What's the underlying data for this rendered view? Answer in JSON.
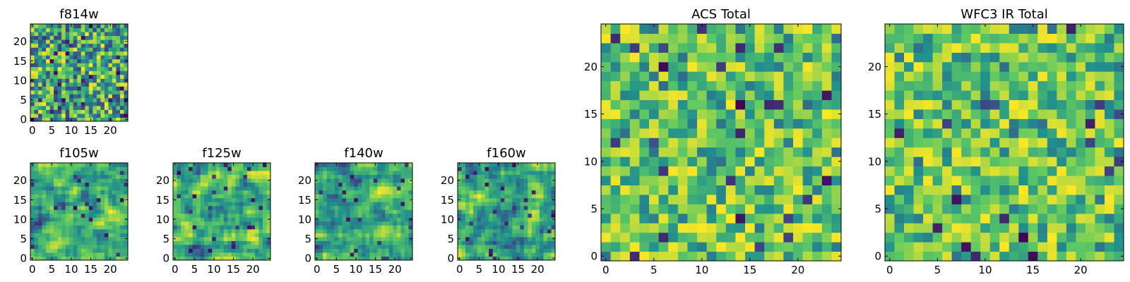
{
  "figure": {
    "description_colormap": "viridis",
    "colormap_stops": [
      "#440154",
      "#3b528b",
      "#21918c",
      "#5ec962",
      "#fde725"
    ]
  },
  "chart_data": [
    {
      "id": "f814w",
      "type": "heatmap",
      "title": "f814w",
      "grid_size": 25,
      "seed": 814,
      "mode": "noise",
      "xlim": [
        0,
        24
      ],
      "ylim": [
        0,
        24
      ],
      "xticks": [
        0,
        5,
        10,
        15,
        20
      ],
      "yticks": [
        0,
        5,
        10,
        15,
        20
      ]
    },
    {
      "id": "f105w",
      "type": "heatmap",
      "title": "f105w",
      "grid_size": 25,
      "seed": 105,
      "mode": "smooth",
      "xlim": [
        0,
        24
      ],
      "ylim": [
        0,
        24
      ],
      "xticks": [
        0,
        5,
        10,
        15,
        20
      ],
      "yticks": [
        0,
        5,
        10,
        15,
        20
      ]
    },
    {
      "id": "f125w",
      "type": "heatmap",
      "title": "f125w",
      "grid_size": 25,
      "seed": 125,
      "mode": "smooth",
      "xlim": [
        0,
        24
      ],
      "ylim": [
        0,
        24
      ],
      "xticks": [
        0,
        5,
        10,
        15,
        20
      ],
      "yticks": [
        0,
        5,
        10,
        15,
        20
      ]
    },
    {
      "id": "f140w",
      "type": "heatmap",
      "title": "f140w",
      "grid_size": 25,
      "seed": 140,
      "mode": "smooth",
      "xlim": [
        0,
        24
      ],
      "ylim": [
        0,
        24
      ],
      "xticks": [
        0,
        5,
        10,
        15,
        20
      ],
      "yticks": [
        0,
        5,
        10,
        15,
        20
      ]
    },
    {
      "id": "f160w",
      "type": "heatmap",
      "title": "f160w",
      "grid_size": 25,
      "seed": 160,
      "mode": "smooth",
      "xlim": [
        0,
        24
      ],
      "ylim": [
        0,
        24
      ],
      "xticks": [
        0,
        5,
        10,
        15,
        20
      ],
      "yticks": [
        0,
        5,
        10,
        15,
        20
      ]
    },
    {
      "id": "acs-total",
      "type": "heatmap",
      "title": "ACS Total",
      "grid_size": 25,
      "seed": 2001,
      "mode": "noise-bright",
      "xlim": [
        0,
        24
      ],
      "ylim": [
        0,
        24
      ],
      "xticks": [
        0,
        5,
        10,
        15,
        20
      ],
      "yticks": [
        0,
        5,
        10,
        15,
        20
      ]
    },
    {
      "id": "wfc3-ir-total",
      "type": "heatmap",
      "title": "WFC3 IR Total",
      "grid_size": 25,
      "seed": 3001,
      "mode": "noise-bright",
      "xlim": [
        0,
        24
      ],
      "ylim": [
        0,
        24
      ],
      "xticks": [
        0,
        5,
        10,
        15,
        20
      ],
      "yticks": [
        0,
        5,
        10,
        15,
        20
      ]
    }
  ]
}
